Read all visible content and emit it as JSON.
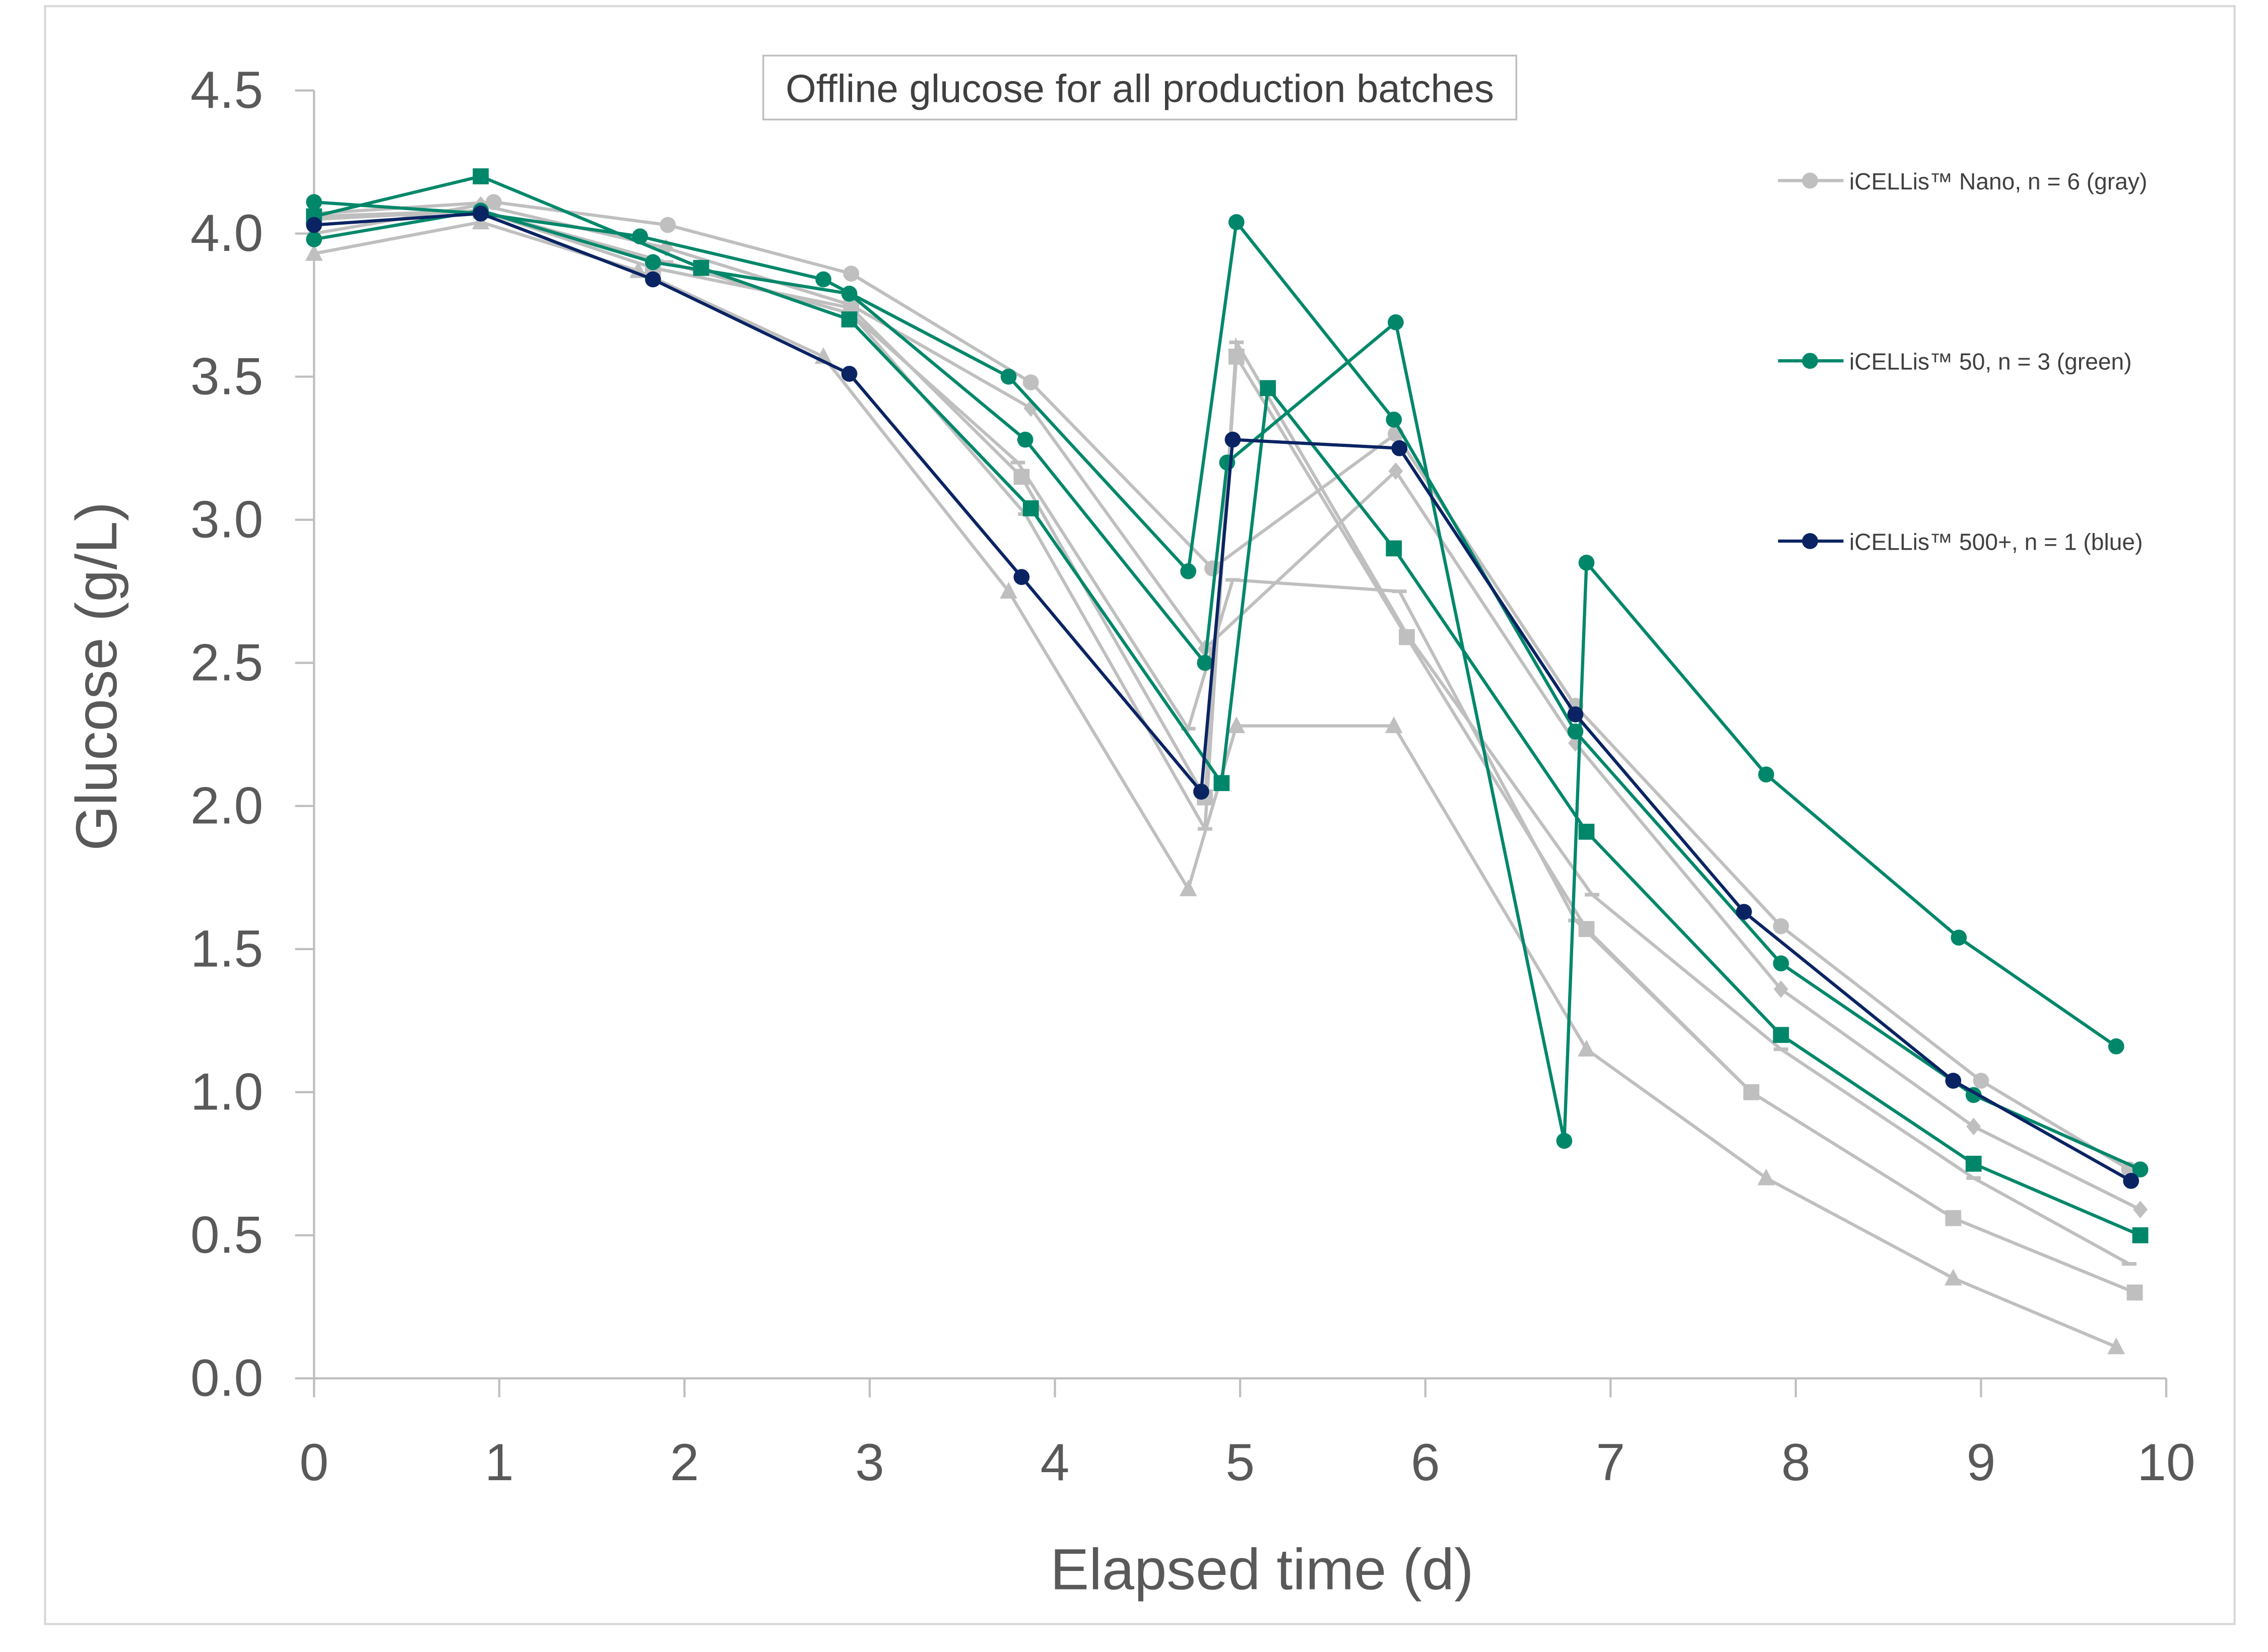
{
  "chart_data": {
    "type": "line",
    "title": "Offline glucose for all production batches",
    "xlabel": "Elapsed time (d)",
    "ylabel": "Glucose (g/L)",
    "xlim": [
      0,
      10
    ],
    "ylim": [
      0,
      4.5
    ],
    "xticks": [
      "0",
      "1",
      "2",
      "3",
      "4",
      "5",
      "6",
      "7",
      "8",
      "9",
      "10"
    ],
    "yticks": [
      "0.0",
      "0.5",
      "1.0",
      "1.5",
      "2.0",
      "2.5",
      "3.0",
      "3.5",
      "4.0",
      "4.5"
    ],
    "grid": false,
    "legend_placement": "right",
    "legend": [
      {
        "label": "iCELLis™ Nano, n = 6 (gray)",
        "color": "#BFBFBF"
      },
      {
        "label": "iCELLis™ 50, n = 3 (green)",
        "color": "#00876A"
      },
      {
        "label": "iCELLis™ 500+, n = 1 (blue)",
        "color": "#0A2463"
      }
    ],
    "colors": {
      "gray": "#BFBFBF",
      "green": "#00876A",
      "blue": "#0A2463"
    },
    "series": [
      {
        "group": "gray",
        "marker": "circle",
        "points": [
          [
            0,
            4.07
          ],
          [
            0.97,
            4.11
          ],
          [
            1.91,
            4.03
          ],
          [
            2.9,
            3.86
          ],
          [
            3.87,
            3.48
          ],
          [
            4.85,
            2.83
          ],
          [
            5.84,
            3.3
          ],
          [
            6.81,
            2.35
          ],
          [
            7.92,
            1.58
          ],
          [
            9.0,
            1.04
          ],
          [
            9.8,
            0.73
          ]
        ]
      },
      {
        "group": "gray",
        "marker": "diamond",
        "points": [
          [
            0,
            4.0
          ],
          [
            0.9,
            4.1
          ],
          [
            1.9,
            3.95
          ],
          [
            2.9,
            3.75
          ],
          [
            3.87,
            3.39
          ],
          [
            4.81,
            2.55
          ],
          [
            5.84,
            3.17
          ],
          [
            6.81,
            2.22
          ],
          [
            7.92,
            1.36
          ],
          [
            8.96,
            0.88
          ],
          [
            9.86,
            0.59
          ]
        ]
      },
      {
        "group": "gray",
        "marker": "square",
        "points": [
          [
            0,
            4.06
          ],
          [
            0.9,
            4.08
          ],
          [
            1.83,
            3.88
          ],
          [
            2.9,
            3.74
          ],
          [
            3.82,
            3.15
          ],
          [
            4.81,
            2.03
          ],
          [
            4.98,
            3.57
          ],
          [
            5.9,
            2.59
          ],
          [
            6.87,
            1.57
          ],
          [
            7.76,
            1.0
          ],
          [
            8.85,
            0.56
          ],
          [
            9.83,
            0.3
          ]
        ]
      },
      {
        "group": "gray",
        "marker": "triangle",
        "points": [
          [
            0,
            3.93
          ],
          [
            0.9,
            4.04
          ],
          [
            1.75,
            3.87
          ],
          [
            2.75,
            3.57
          ],
          [
            3.75,
            2.75
          ],
          [
            4.72,
            1.71
          ],
          [
            4.98,
            2.28
          ],
          [
            5.83,
            2.28
          ],
          [
            6.87,
            1.15
          ],
          [
            7.84,
            0.7
          ],
          [
            8.85,
            0.35
          ],
          [
            9.73,
            0.11
          ]
        ]
      },
      {
        "group": "gray",
        "marker": "dash",
        "points": [
          [
            0,
            4.05
          ],
          [
            0.9,
            4.08
          ],
          [
            1.9,
            3.9
          ],
          [
            2.9,
            3.72
          ],
          [
            3.84,
            3.02
          ],
          [
            4.81,
            1.92
          ],
          [
            4.98,
            3.62
          ],
          [
            5.9,
            2.6
          ],
          [
            6.9,
            1.69
          ],
          [
            7.92,
            1.15
          ],
          [
            8.96,
            0.7
          ],
          [
            9.8,
            0.4
          ]
        ]
      },
      {
        "group": "gray",
        "marker": "dash",
        "points": [
          [
            0,
            4.05
          ],
          [
            0.9,
            4.08
          ],
          [
            1.9,
            3.9
          ],
          [
            2.9,
            3.72
          ],
          [
            3.8,
            3.2
          ],
          [
            4.72,
            2.27
          ],
          [
            4.96,
            2.79
          ],
          [
            5.86,
            2.75
          ],
          [
            6.81,
            1.6
          ],
          [
            7.76,
            1.0
          ]
        ]
      },
      {
        "group": "green",
        "marker": "circle",
        "points": [
          [
            0,
            4.11
          ],
          [
            0.9,
            4.07
          ],
          [
            1.76,
            3.99
          ],
          [
            2.75,
            3.84
          ],
          [
            3.75,
            3.5
          ],
          [
            4.72,
            2.82
          ],
          [
            4.98,
            4.04
          ],
          [
            5.83,
            3.35
          ],
          [
            6.81,
            2.26
          ],
          [
            7.92,
            1.45
          ],
          [
            8.96,
            0.99
          ],
          [
            9.86,
            0.73
          ]
        ]
      },
      {
        "group": "green",
        "marker": "circle",
        "points": [
          [
            0,
            3.98
          ],
          [
            0.9,
            4.08
          ],
          [
            1.83,
            3.9
          ],
          [
            2.89,
            3.79
          ],
          [
            3.84,
            3.28
          ],
          [
            4.81,
            2.5
          ],
          [
            4.93,
            3.2
          ],
          [
            5.84,
            3.69
          ],
          [
            6.75,
            0.83
          ],
          [
            6.87,
            2.85
          ],
          [
            7.84,
            2.11
          ],
          [
            8.88,
            1.54
          ],
          [
            9.73,
            1.16
          ]
        ]
      },
      {
        "group": "green",
        "marker": "square",
        "points": [
          [
            0,
            4.06
          ],
          [
            0.9,
            4.2
          ],
          [
            2.09,
            3.88
          ],
          [
            2.89,
            3.7
          ],
          [
            3.87,
            3.04
          ],
          [
            4.9,
            2.08
          ],
          [
            5.15,
            3.46
          ],
          [
            5.83,
            2.9
          ],
          [
            6.87,
            1.91
          ],
          [
            7.92,
            1.2
          ],
          [
            8.96,
            0.75
          ],
          [
            9.86,
            0.5
          ]
        ]
      },
      {
        "group": "blue",
        "marker": "circle",
        "points": [
          [
            0,
            4.03
          ],
          [
            0.9,
            4.07
          ],
          [
            1.83,
            3.84
          ],
          [
            2.89,
            3.51
          ],
          [
            3.82,
            2.8
          ],
          [
            4.79,
            2.05
          ],
          [
            4.96,
            3.28
          ],
          [
            5.86,
            3.25
          ],
          [
            6.81,
            2.32
          ],
          [
            7.72,
            1.63
          ],
          [
            8.85,
            1.04
          ],
          [
            9.81,
            0.69
          ]
        ]
      }
    ]
  }
}
